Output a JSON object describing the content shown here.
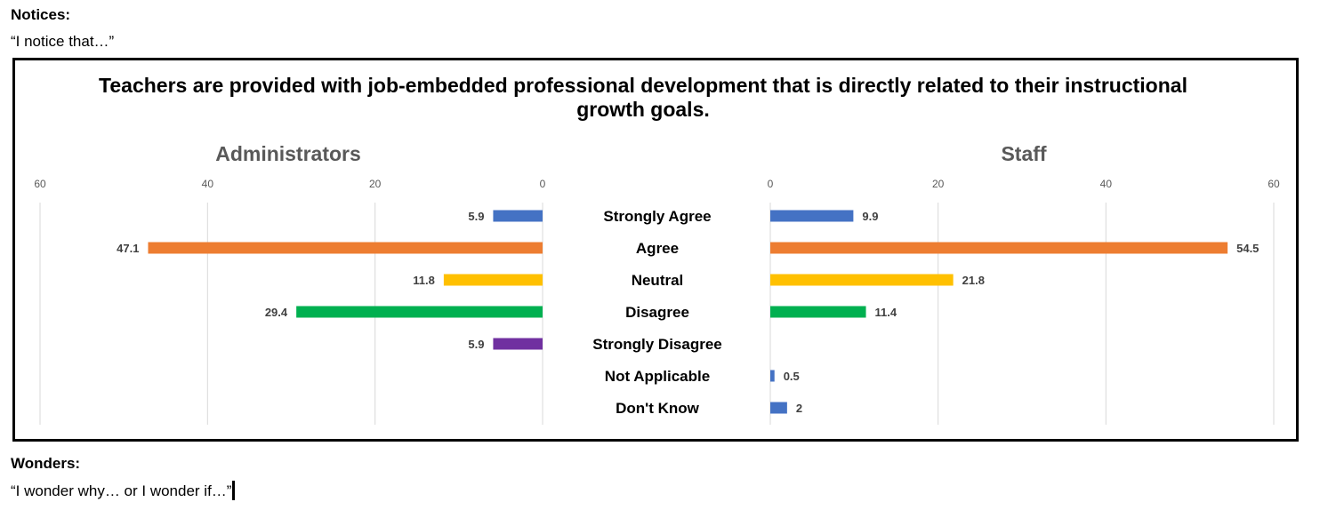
{
  "document": {
    "notices_heading": "Notices:",
    "notices_prompt": "“I notice that…”",
    "wonders_heading": "Wonders:",
    "wonders_prompt": "“I wonder why… or I wonder if…”"
  },
  "chart_data": {
    "type": "bar",
    "orientation": "horizontal",
    "layout": "butterfly",
    "title": "Teachers are provided with job-embedded professional development that is directly related to their instructional growth goals.",
    "title_lines": [
      "Teachers are provided with job-embedded professional development that is directly related to their instructional",
      "growth goals."
    ],
    "categories": [
      "Strongly Agree",
      "Agree",
      "Neutral",
      "Disagree",
      "Strongly Disagree",
      "Not Applicable",
      "Don't Know"
    ],
    "category_colors": [
      "#4472C4",
      "#ED7D31",
      "#FFC000",
      "#00B050",
      "#7030A0",
      "#4472C4",
      "#4472C4"
    ],
    "xlim": [
      0,
      60
    ],
    "ticks": [
      0,
      20,
      40,
      60
    ],
    "grid": true,
    "legend": "none",
    "series": [
      {
        "name": "Administrators",
        "side": "left",
        "values": [
          5.9,
          47.1,
          11.8,
          29.4,
          5.9,
          null,
          null
        ]
      },
      {
        "name": "Staff",
        "side": "right",
        "values": [
          9.9,
          54.5,
          21.8,
          11.4,
          null,
          0.5,
          2
        ]
      }
    ]
  }
}
